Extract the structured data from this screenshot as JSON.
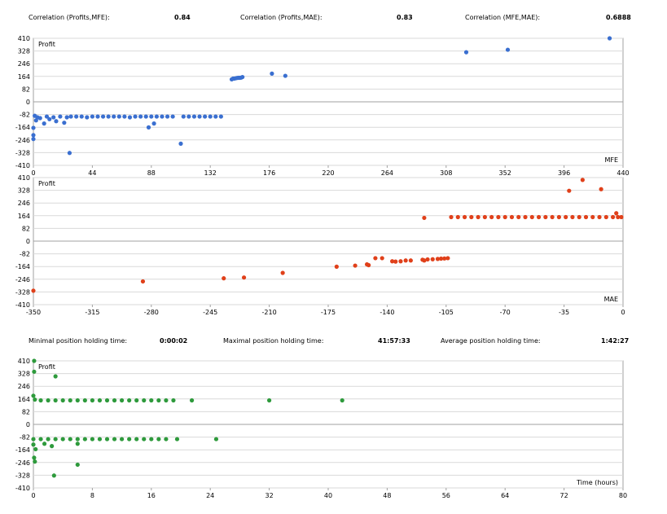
{
  "header_stats": [
    {
      "label": "Correlation (Profits,MFE):",
      "value": "0.84"
    },
    {
      "label": "Correlation (Profits,MAE):",
      "value": "0.83"
    },
    {
      "label": "Correlation (MFE,MAE):",
      "value": "0.6888"
    }
  ],
  "holding_stats": [
    {
      "label": "Minimal position holding time:",
      "value": "0:00:02"
    },
    {
      "label": "Maximal position holding time:",
      "value": "41:57:33"
    },
    {
      "label": "Average position holding time:",
      "value": "1:42:27"
    }
  ],
  "colors": {
    "mfe_points": "#3a6fd0",
    "mae_points": "#e0401a",
    "holding_points": "#2e9a3c",
    "grid": "#d9d9d9",
    "zero_line": "#a0a0a0",
    "frame": "#a0a0a0"
  },
  "chart_data": [
    {
      "type": "scatter",
      "ylabel": "Profit",
      "xlabel": "MFE",
      "xlim": [
        0,
        440
      ],
      "ylim": [
        -410,
        410
      ],
      "x_ticks": [
        "0",
        "44",
        "88",
        "132",
        "176",
        "220",
        "264",
        "308",
        "352",
        "396",
        "440"
      ],
      "y_ticks": [
        "410",
        "328",
        "246",
        "164",
        "82",
        "0",
        "-82",
        "-164",
        "-246",
        "-328",
        "-410"
      ],
      "grid": true,
      "series": [
        {
          "color_key": "mfe_points",
          "points": [
            [
              0,
              -168
            ],
            [
              0,
              -215
            ],
            [
              0,
              -240
            ],
            [
              1,
              -90
            ],
            [
              2,
              -120
            ],
            [
              3,
              -100
            ],
            [
              5,
              -105
            ],
            [
              8,
              -140
            ],
            [
              10,
              -95
            ],
            [
              12,
              -112
            ],
            [
              15,
              -100
            ],
            [
              17,
              -125
            ],
            [
              20,
              -95
            ],
            [
              23,
              -135
            ],
            [
              25,
              -100
            ],
            [
              27,
              -330
            ],
            [
              28,
              -95
            ],
            [
              32,
              -95
            ],
            [
              36,
              -95
            ],
            [
              40,
              -100
            ],
            [
              44,
              -95
            ],
            [
              48,
              -95
            ],
            [
              52,
              -95
            ],
            [
              56,
              -95
            ],
            [
              60,
              -95
            ],
            [
              64,
              -95
            ],
            [
              68,
              -95
            ],
            [
              72,
              -100
            ],
            [
              76,
              -95
            ],
            [
              80,
              -95
            ],
            [
              84,
              -95
            ],
            [
              86,
              -165
            ],
            [
              88,
              -95
            ],
            [
              90,
              -140
            ],
            [
              92,
              -95
            ],
            [
              96,
              -95
            ],
            [
              100,
              -95
            ],
            [
              104,
              -95
            ],
            [
              110,
              -270
            ],
            [
              112,
              -95
            ],
            [
              116,
              -95
            ],
            [
              120,
              -95
            ],
            [
              124,
              -95
            ],
            [
              128,
              -95
            ],
            [
              132,
              -95
            ],
            [
              136,
              -95
            ],
            [
              140,
              -95
            ],
            [
              148,
              145
            ],
            [
              149,
              150
            ],
            [
              150,
              150
            ],
            [
              151,
              152
            ],
            [
              152,
              154
            ],
            [
              153,
              155
            ],
            [
              154,
              155
            ],
            [
              155,
              156
            ],
            [
              156,
              160
            ],
            [
              178,
              182
            ],
            [
              188,
              168
            ],
            [
              323,
              320
            ],
            [
              354,
              336
            ],
            [
              430,
              410
            ]
          ]
        }
      ]
    },
    {
      "type": "scatter",
      "ylabel": "Profit",
      "xlabel": "MAE",
      "xlim": [
        -350,
        0
      ],
      "ylim": [
        -410,
        410
      ],
      "x_ticks": [
        "-350",
        "-315",
        "-280",
        "-245",
        "-210",
        "-175",
        "-140",
        "-105",
        "-70",
        "-35",
        "0"
      ],
      "y_ticks": [
        "410",
        "328",
        "246",
        "164",
        "82",
        "0",
        "-82",
        "-164",
        "-246",
        "-328",
        "-410"
      ],
      "grid": true,
      "series": [
        {
          "color_key": "mae_points",
          "points": [
            [
              -350,
              -320
            ],
            [
              -285,
              -260
            ],
            [
              -237,
              -240
            ],
            [
              -225,
              -235
            ],
            [
              -202,
              -205
            ],
            [
              -170,
              -165
            ],
            [
              -159,
              -158
            ],
            [
              -152,
              -150
            ],
            [
              -151,
              -155
            ],
            [
              -147,
              -110
            ],
            [
              -143,
              -110
            ],
            [
              -137,
              -130
            ],
            [
              -135,
              -132
            ],
            [
              -132,
              -130
            ],
            [
              -129,
              -125
            ],
            [
              -126,
              -125
            ],
            [
              -119,
              -120
            ],
            [
              -118,
              -125
            ],
            [
              -116,
              -118
            ],
            [
              -113,
              -117
            ],
            [
              -110,
              -115
            ],
            [
              -108,
              -113
            ],
            [
              -106,
              -112
            ],
            [
              -104,
              -110
            ],
            [
              -118,
              150
            ],
            [
              -102,
              155
            ],
            [
              -98,
              155
            ],
            [
              -94,
              155
            ],
            [
              -90,
              155
            ],
            [
              -86,
              155
            ],
            [
              -82,
              155
            ],
            [
              -78,
              155
            ],
            [
              -74,
              155
            ],
            [
              -70,
              155
            ],
            [
              -66,
              155
            ],
            [
              -62,
              155
            ],
            [
              -58,
              155
            ],
            [
              -54,
              155
            ],
            [
              -50,
              155
            ],
            [
              -46,
              155
            ],
            [
              -42,
              155
            ],
            [
              -38,
              155
            ],
            [
              -34,
              155
            ],
            [
              -30,
              155
            ],
            [
              -26,
              155
            ],
            [
              -22,
              155
            ],
            [
              -18,
              155
            ],
            [
              -14,
              155
            ],
            [
              -10,
              155
            ],
            [
              -6,
              155
            ],
            [
              -3,
              155
            ],
            [
              -1,
              155
            ],
            [
              -4,
              180
            ],
            [
              -13,
              335
            ],
            [
              -32,
              325
            ],
            [
              -24,
              395
            ]
          ]
        }
      ]
    },
    {
      "type": "scatter",
      "ylabel": "Profit",
      "xlabel": "Time (hours)",
      "xlim": [
        0,
        80
      ],
      "ylim": [
        -410,
        410
      ],
      "x_ticks": [
        "0",
        "8",
        "16",
        "24",
        "32",
        "40",
        "48",
        "56",
        "64",
        "72",
        "80"
      ],
      "y_ticks": [
        "410",
        "328",
        "246",
        "164",
        "82",
        "0",
        "-82",
        "-164",
        "-246",
        "-328",
        "-410"
      ],
      "grid": true,
      "series": [
        {
          "color_key": "holding_points",
          "points": [
            [
              0.1,
              410
            ],
            [
              0.1,
              340
            ],
            [
              0,
              185
            ],
            [
              0.2,
              160
            ],
            [
              1,
              155
            ],
            [
              2,
              155
            ],
            [
              3,
              155
            ],
            [
              4,
              155
            ],
            [
              5,
              155
            ],
            [
              6,
              155
            ],
            [
              7,
              155
            ],
            [
              8,
              155
            ],
            [
              9,
              155
            ],
            [
              10,
              155
            ],
            [
              11,
              155
            ],
            [
              12,
              155
            ],
            [
              13,
              155
            ],
            [
              14,
              155
            ],
            [
              15,
              155
            ],
            [
              16,
              155
            ],
            [
              17,
              155
            ],
            [
              18,
              155
            ],
            [
              19,
              155
            ],
            [
              21.5,
              155
            ],
            [
              32,
              155
            ],
            [
              41.9,
              155
            ],
            [
              3,
              310
            ],
            [
              0,
              -95
            ],
            [
              1,
              -95
            ],
            [
              2,
              -95
            ],
            [
              3,
              -95
            ],
            [
              4,
              -95
            ],
            [
              5,
              -95
            ],
            [
              6,
              -95
            ],
            [
              7,
              -95
            ],
            [
              8,
              -95
            ],
            [
              9,
              -95
            ],
            [
              10,
              -95
            ],
            [
              11,
              -95
            ],
            [
              12,
              -95
            ],
            [
              13,
              -95
            ],
            [
              14,
              -95
            ],
            [
              15,
              -95
            ],
            [
              16,
              -95
            ],
            [
              17,
              -95
            ],
            [
              18,
              -95
            ],
            [
              19.5,
              -95
            ],
            [
              24.8,
              -95
            ],
            [
              0,
              -130
            ],
            [
              0.3,
              -160
            ],
            [
              0.1,
              -215
            ],
            [
              0.2,
              -240
            ],
            [
              1.5,
              -125
            ],
            [
              2.5,
              -140
            ],
            [
              2.8,
              -330
            ],
            [
              6,
              -125
            ],
            [
              6,
              -260
            ]
          ]
        }
      ]
    }
  ]
}
